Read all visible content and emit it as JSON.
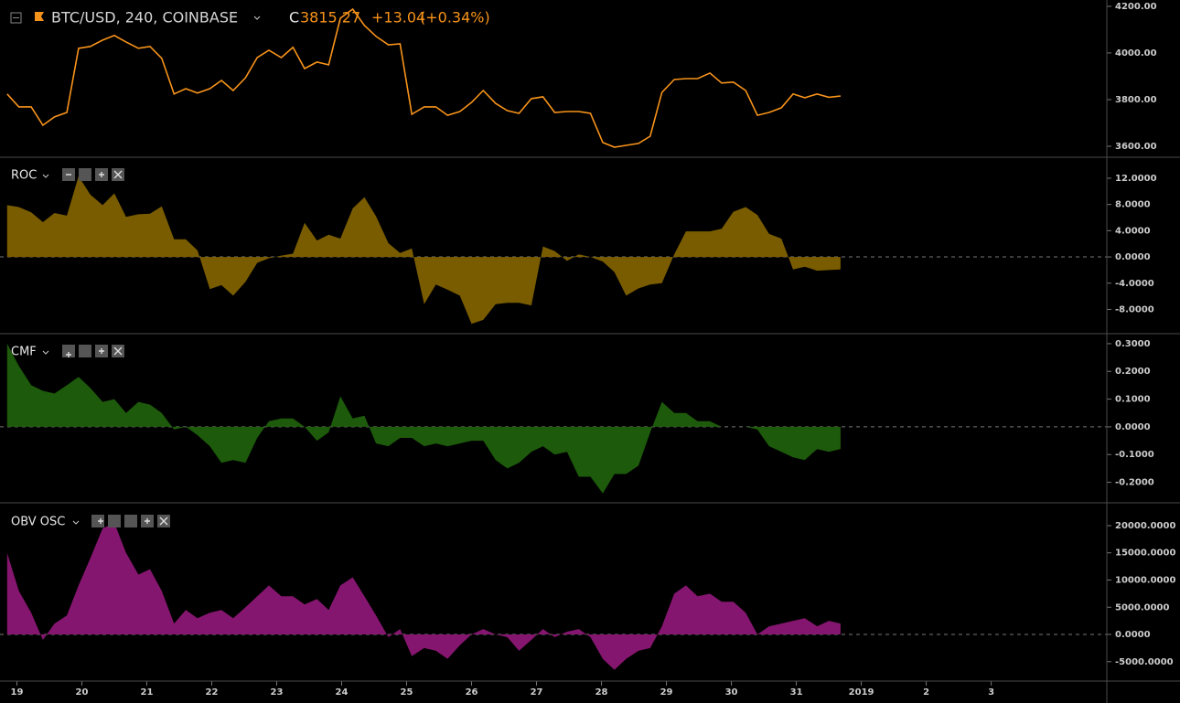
{
  "chart_data": {
    "type": "multi-pane",
    "x": [
      18.85,
      19.03,
      19.22,
      19.4,
      19.58,
      19.77,
      19.95,
      20.13,
      20.32,
      20.5,
      20.68,
      20.87,
      21.05,
      21.23,
      21.42,
      21.6,
      21.78,
      21.97,
      22.15,
      22.33,
      22.52,
      22.7,
      22.88,
      23.07,
      23.25,
      23.43,
      23.62,
      23.8,
      23.98,
      24.17,
      24.35,
      24.53,
      24.72,
      24.9,
      25.08,
      25.27,
      25.45,
      25.63,
      25.82,
      26.0,
      26.18,
      26.37,
      26.55,
      26.73,
      26.92,
      27.1,
      27.28,
      27.47,
      27.65,
      27.83,
      28.02,
      28.2,
      28.38,
      28.57,
      28.75,
      28.93,
      29.12,
      29.3,
      29.48,
      29.67,
      29.85,
      30.03,
      30.22,
      30.4,
      30.58,
      30.77,
      30.95,
      31.13,
      31.32,
      31.5,
      31.68
    ],
    "xlim": [
      18.74,
      35.78
    ],
    "xticks": [
      19,
      20,
      21,
      22,
      23,
      24,
      25,
      26,
      27,
      28,
      29,
      30,
      31,
      {
        "value": 32,
        "label": "2019"
      },
      {
        "value": 33,
        "label": "2"
      },
      {
        "value": 34,
        "label": "3"
      }
    ],
    "panes": [
      {
        "type": "line",
        "title": "BTC/USD, 240, COINBASE",
        "close_label": "C",
        "close": 3815.27,
        "change": "+13.04",
        "change_pct": "(+0.34%)",
        "color": "#f7931a",
        "values": [
          3824,
          3769,
          3769,
          3690,
          3726,
          3745,
          4020,
          4028,
          4055,
          4075,
          4047,
          4020,
          4028,
          3977,
          3824,
          3847,
          3828,
          3847,
          3882,
          3839,
          3894,
          3980,
          4012,
          3980,
          4024,
          3933,
          3961,
          3949,
          4149,
          4188,
          4118,
          4071,
          4035,
          4039,
          3737,
          3769,
          3769,
          3733,
          3749,
          3788,
          3839,
          3784,
          3753,
          3741,
          3804,
          3812,
          3745,
          3749,
          3749,
          3741,
          3616,
          3596,
          3604,
          3612,
          3643,
          3831,
          3886,
          3890,
          3890,
          3914,
          3871,
          3875,
          3839,
          3733,
          3745,
          3765,
          3824,
          3808,
          3824,
          3810,
          3815
        ],
        "ylim": [
          3553,
          4227
        ],
        "yticks": [
          {
            "value": 3600,
            "label": "3600.00"
          },
          {
            "value": 3800,
            "label": "3800.00"
          },
          {
            "value": 4000,
            "label": "4000.00"
          },
          {
            "value": 4200,
            "label": "4200.00"
          }
        ]
      },
      {
        "type": "area",
        "title": "ROC",
        "color": "#7a5c00",
        "values": [
          7.9,
          7.6,
          6.8,
          5.3,
          6.7,
          6.3,
          12.3,
          9.5,
          7.9,
          9.7,
          6.1,
          6.5,
          6.6,
          7.7,
          2.7,
          2.7,
          1,
          -4.9,
          -4.3,
          -5.9,
          -3.8,
          -0.9,
          -0.2,
          0.2,
          0.5,
          5.2,
          2.5,
          3.4,
          2.8,
          7.4,
          9.1,
          6.2,
          2.1,
          0.6,
          1.3,
          -7.2,
          -4.2,
          -5,
          -5.9,
          -10.2,
          -9.6,
          -7.2,
          -7,
          -7,
          -7.4,
          1.6,
          0.9,
          -0.6,
          0.4,
          0,
          -0.7,
          -2.3,
          -5.9,
          -4.8,
          -4.2,
          -4,
          0.4,
          3.9,
          3.9,
          3.9,
          4.3,
          6.9,
          7.6,
          6.4,
          3.5,
          2.8,
          -1.9,
          -1.5,
          -2.1,
          -2,
          -1.9
        ],
        "ylim": [
          -11.7,
          15.2
        ],
        "yticks": [
          {
            "value": -8,
            "label": "-8.0000"
          },
          {
            "value": -4,
            "label": "-4.0000"
          },
          {
            "value": 0,
            "label": "0.0000"
          },
          {
            "value": 4,
            "label": "4.0000"
          },
          {
            "value": 8,
            "label": "8.0000"
          },
          {
            "value": 12,
            "label": "12.0000"
          }
        ]
      },
      {
        "type": "area",
        "title": "CMF",
        "color": "#1d5a0b",
        "values": [
          0.3,
          0.22,
          0.15,
          0.13,
          0.12,
          0.15,
          0.18,
          0.14,
          0.09,
          0.1,
          0.05,
          0.09,
          0.08,
          0.05,
          -0.01,
          0.0,
          -0.03,
          -0.07,
          -0.13,
          -0.12,
          -0.13,
          -0.04,
          0.02,
          0.03,
          0.03,
          0.0,
          -0.05,
          -0.02,
          0.11,
          0.03,
          0.04,
          -0.06,
          -0.07,
          -0.04,
          -0.04,
          -0.07,
          -0.06,
          -0.07,
          -0.06,
          -0.05,
          -0.05,
          -0.12,
          -0.15,
          -0.13,
          -0.09,
          -0.07,
          -0.1,
          -0.09,
          -0.18,
          -0.18,
          -0.24,
          -0.17,
          -0.17,
          -0.14,
          -0.02,
          0.09,
          0.05,
          0.05,
          0.02,
          0.02,
          0.0,
          0.0,
          0.0,
          -0.01,
          -0.07,
          -0.09,
          -0.11,
          -0.12,
          -0.08,
          -0.09,
          -0.08
        ],
        "ylim": [
          -0.274,
          0.336
        ],
        "yticks": [
          {
            "value": -0.2,
            "label": "-0.2000"
          },
          {
            "value": -0.1,
            "label": "-0.1000"
          },
          {
            "value": 0,
            "label": "0.0000"
          },
          {
            "value": 0.1,
            "label": "0.1000"
          },
          {
            "value": 0.2,
            "label": "0.2000"
          },
          {
            "value": 0.3,
            "label": "0.3000"
          }
        ]
      },
      {
        "type": "area",
        "title": "OBV OSC",
        "color": "#85166f",
        "values": [
          15000,
          8000,
          4000,
          -1000,
          2000,
          3500,
          9000,
          14000,
          19500,
          20500,
          15000,
          11000,
          12000,
          8000,
          2000,
          4500,
          3000,
          4000,
          4500,
          3000,
          5000,
          7000,
          9000,
          7000,
          7000,
          5500,
          6500,
          4500,
          9000,
          10500,
          7000,
          3500,
          -500,
          1000,
          -4000,
          -2500,
          -3000,
          -4500,
          -2000,
          0,
          1000,
          0,
          -500,
          -3000,
          -1000,
          1000,
          -500,
          500,
          1000,
          -500,
          -4500,
          -6500,
          -4500,
          -3000,
          -2500,
          1500,
          7500,
          9000,
          7000,
          7500,
          6000,
          6000,
          4000,
          0,
          1500,
          2000,
          2500,
          3000,
          1500,
          2500,
          2000
        ],
        "ylim": [
          -8570,
          24200
        ],
        "yticks": [
          {
            "value": -5000,
            "label": "-5000.0000"
          },
          {
            "value": 0,
            "label": "0.0000"
          },
          {
            "value": 5000,
            "label": "5000.0000"
          },
          {
            "value": 10000,
            "label": "10000.0000"
          },
          {
            "value": 15000,
            "label": "15000.0000"
          },
          {
            "value": 20000,
            "label": "20000.0000"
          }
        ]
      }
    ]
  }
}
